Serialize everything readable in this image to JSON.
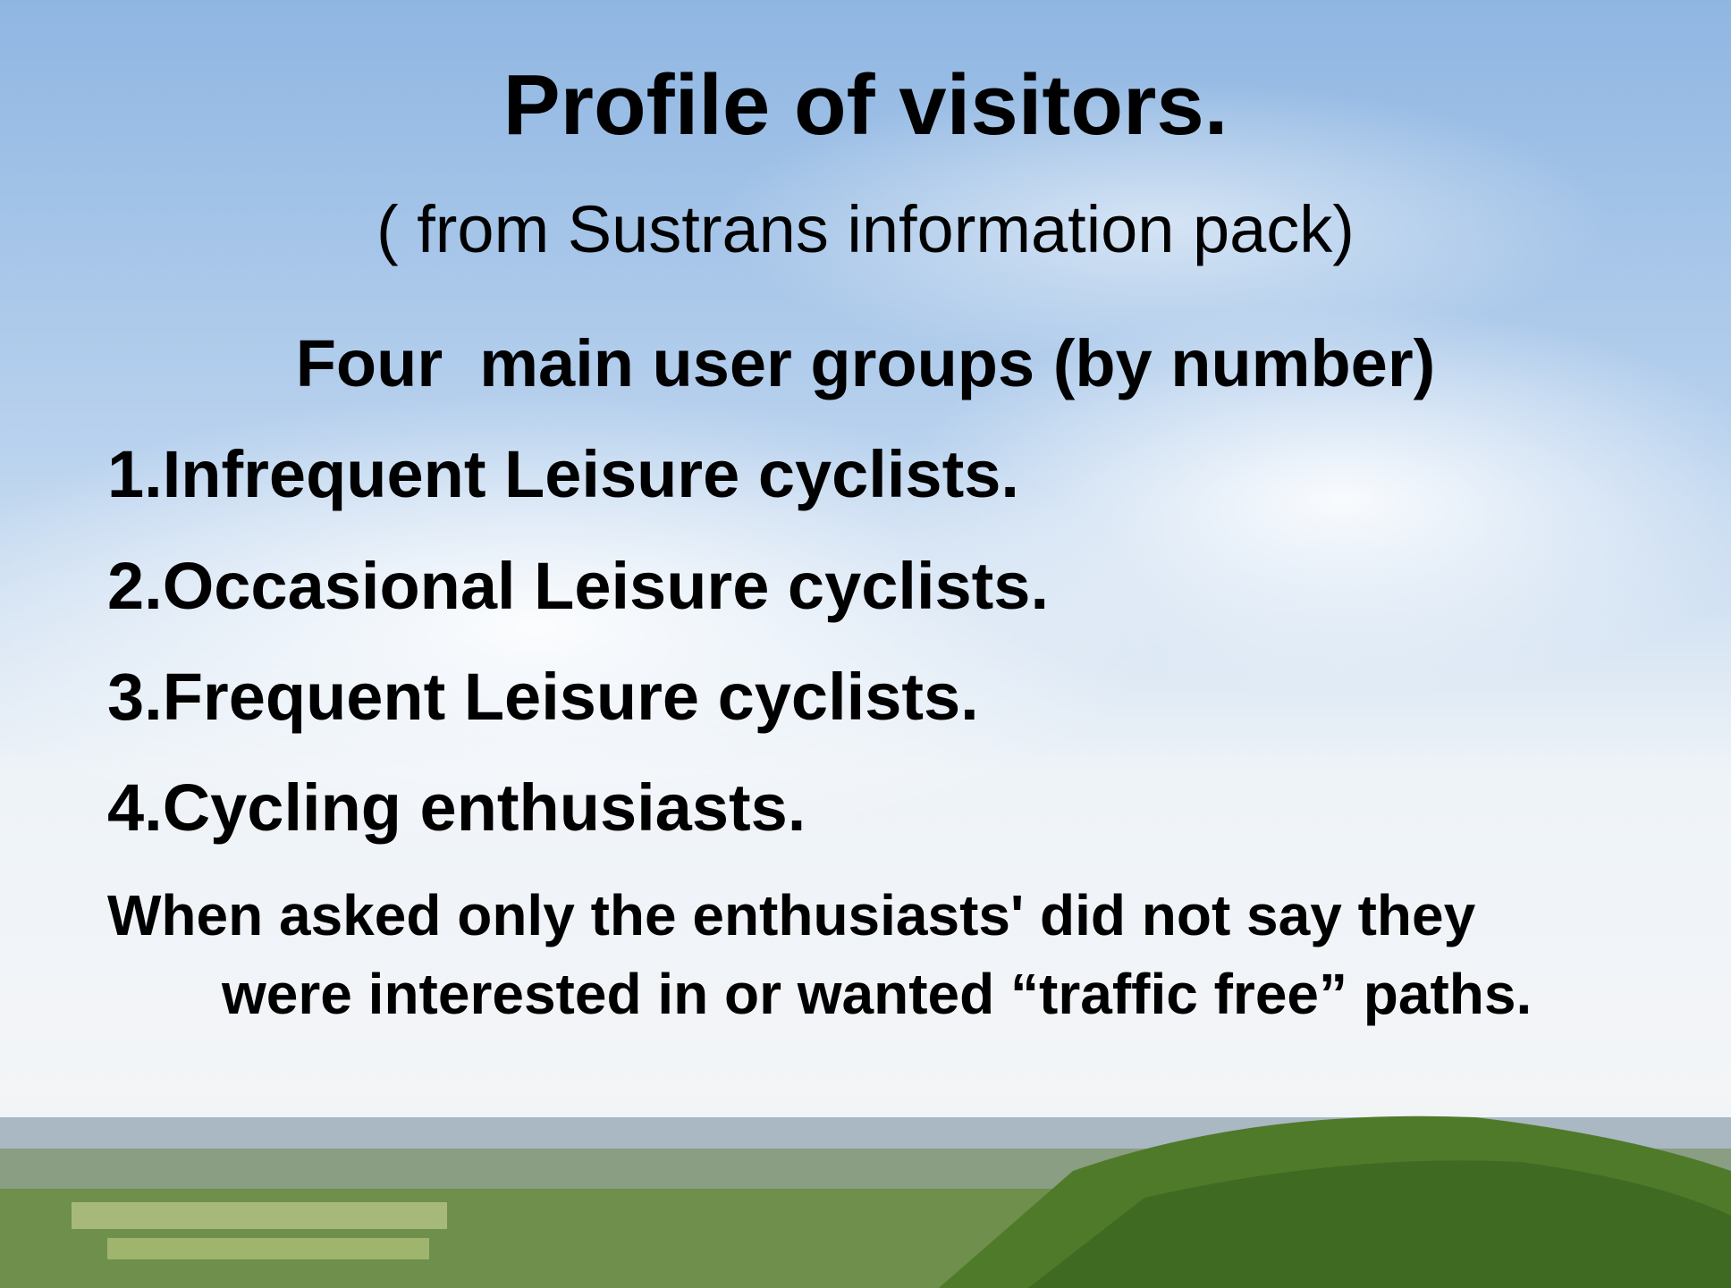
{
  "slide": {
    "title": "Profile of visitors.",
    "subtitle": "( from Sustrans information pack)",
    "heading": "Four  main user groups (by number)",
    "items": [
      "1.Infrequent Leisure cyclists.",
      "2.Occasional Leisure cyclists.",
      "3.Frequent Leisure cyclists.",
      "4.Cycling enthusiasts."
    ],
    "note": "When asked only the enthusiasts' did not say they were interested in or wanted “traffic free” paths."
  }
}
